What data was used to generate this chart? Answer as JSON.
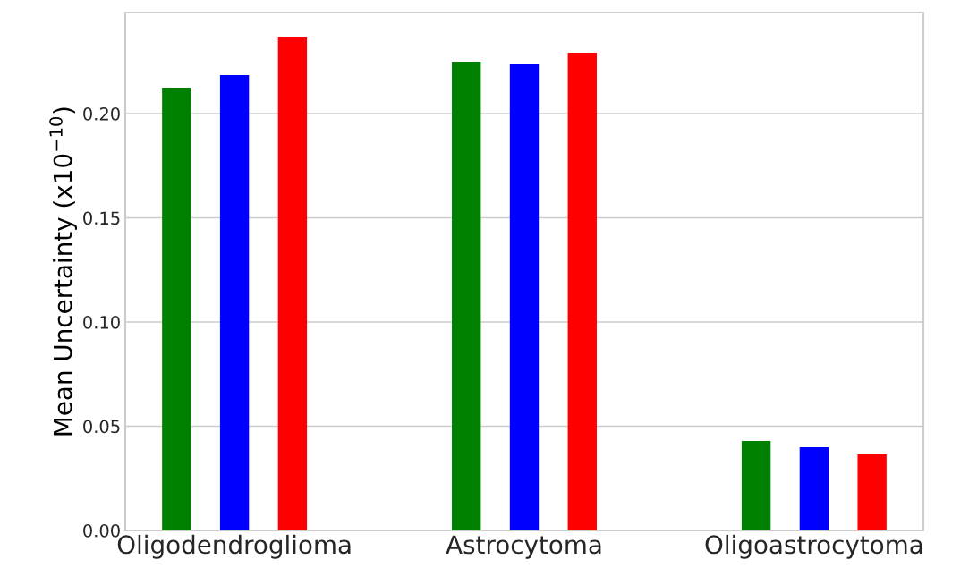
{
  "chart_data": {
    "type": "bar",
    "ylabel": "Mean Uncertainty (x10$^{−10}$)",
    "categories": [
      "Oligodendroglioma",
      "Astrocytoma",
      "Oligoastrocytoma"
    ],
    "series": [
      {
        "color": "#008000",
        "values": [
          0.2124,
          0.2249,
          0.0429
        ]
      },
      {
        "color": "#0000ff",
        "values": [
          0.2185,
          0.2236,
          0.0399
        ]
      },
      {
        "color": "#ff0000",
        "values": [
          0.2369,
          0.2292,
          0.0365
        ]
      }
    ],
    "ylim": [
      0,
      0.2485
    ],
    "yticks": [
      {
        "value": 0,
        "label": "0.00"
      },
      {
        "value": 0.05,
        "label": "0.05"
      },
      {
        "value": 0.1,
        "label": "0.10"
      },
      {
        "value": 0.15,
        "label": "0.15"
      },
      {
        "value": 0.2,
        "label": "0.20"
      }
    ],
    "grid": "y"
  }
}
